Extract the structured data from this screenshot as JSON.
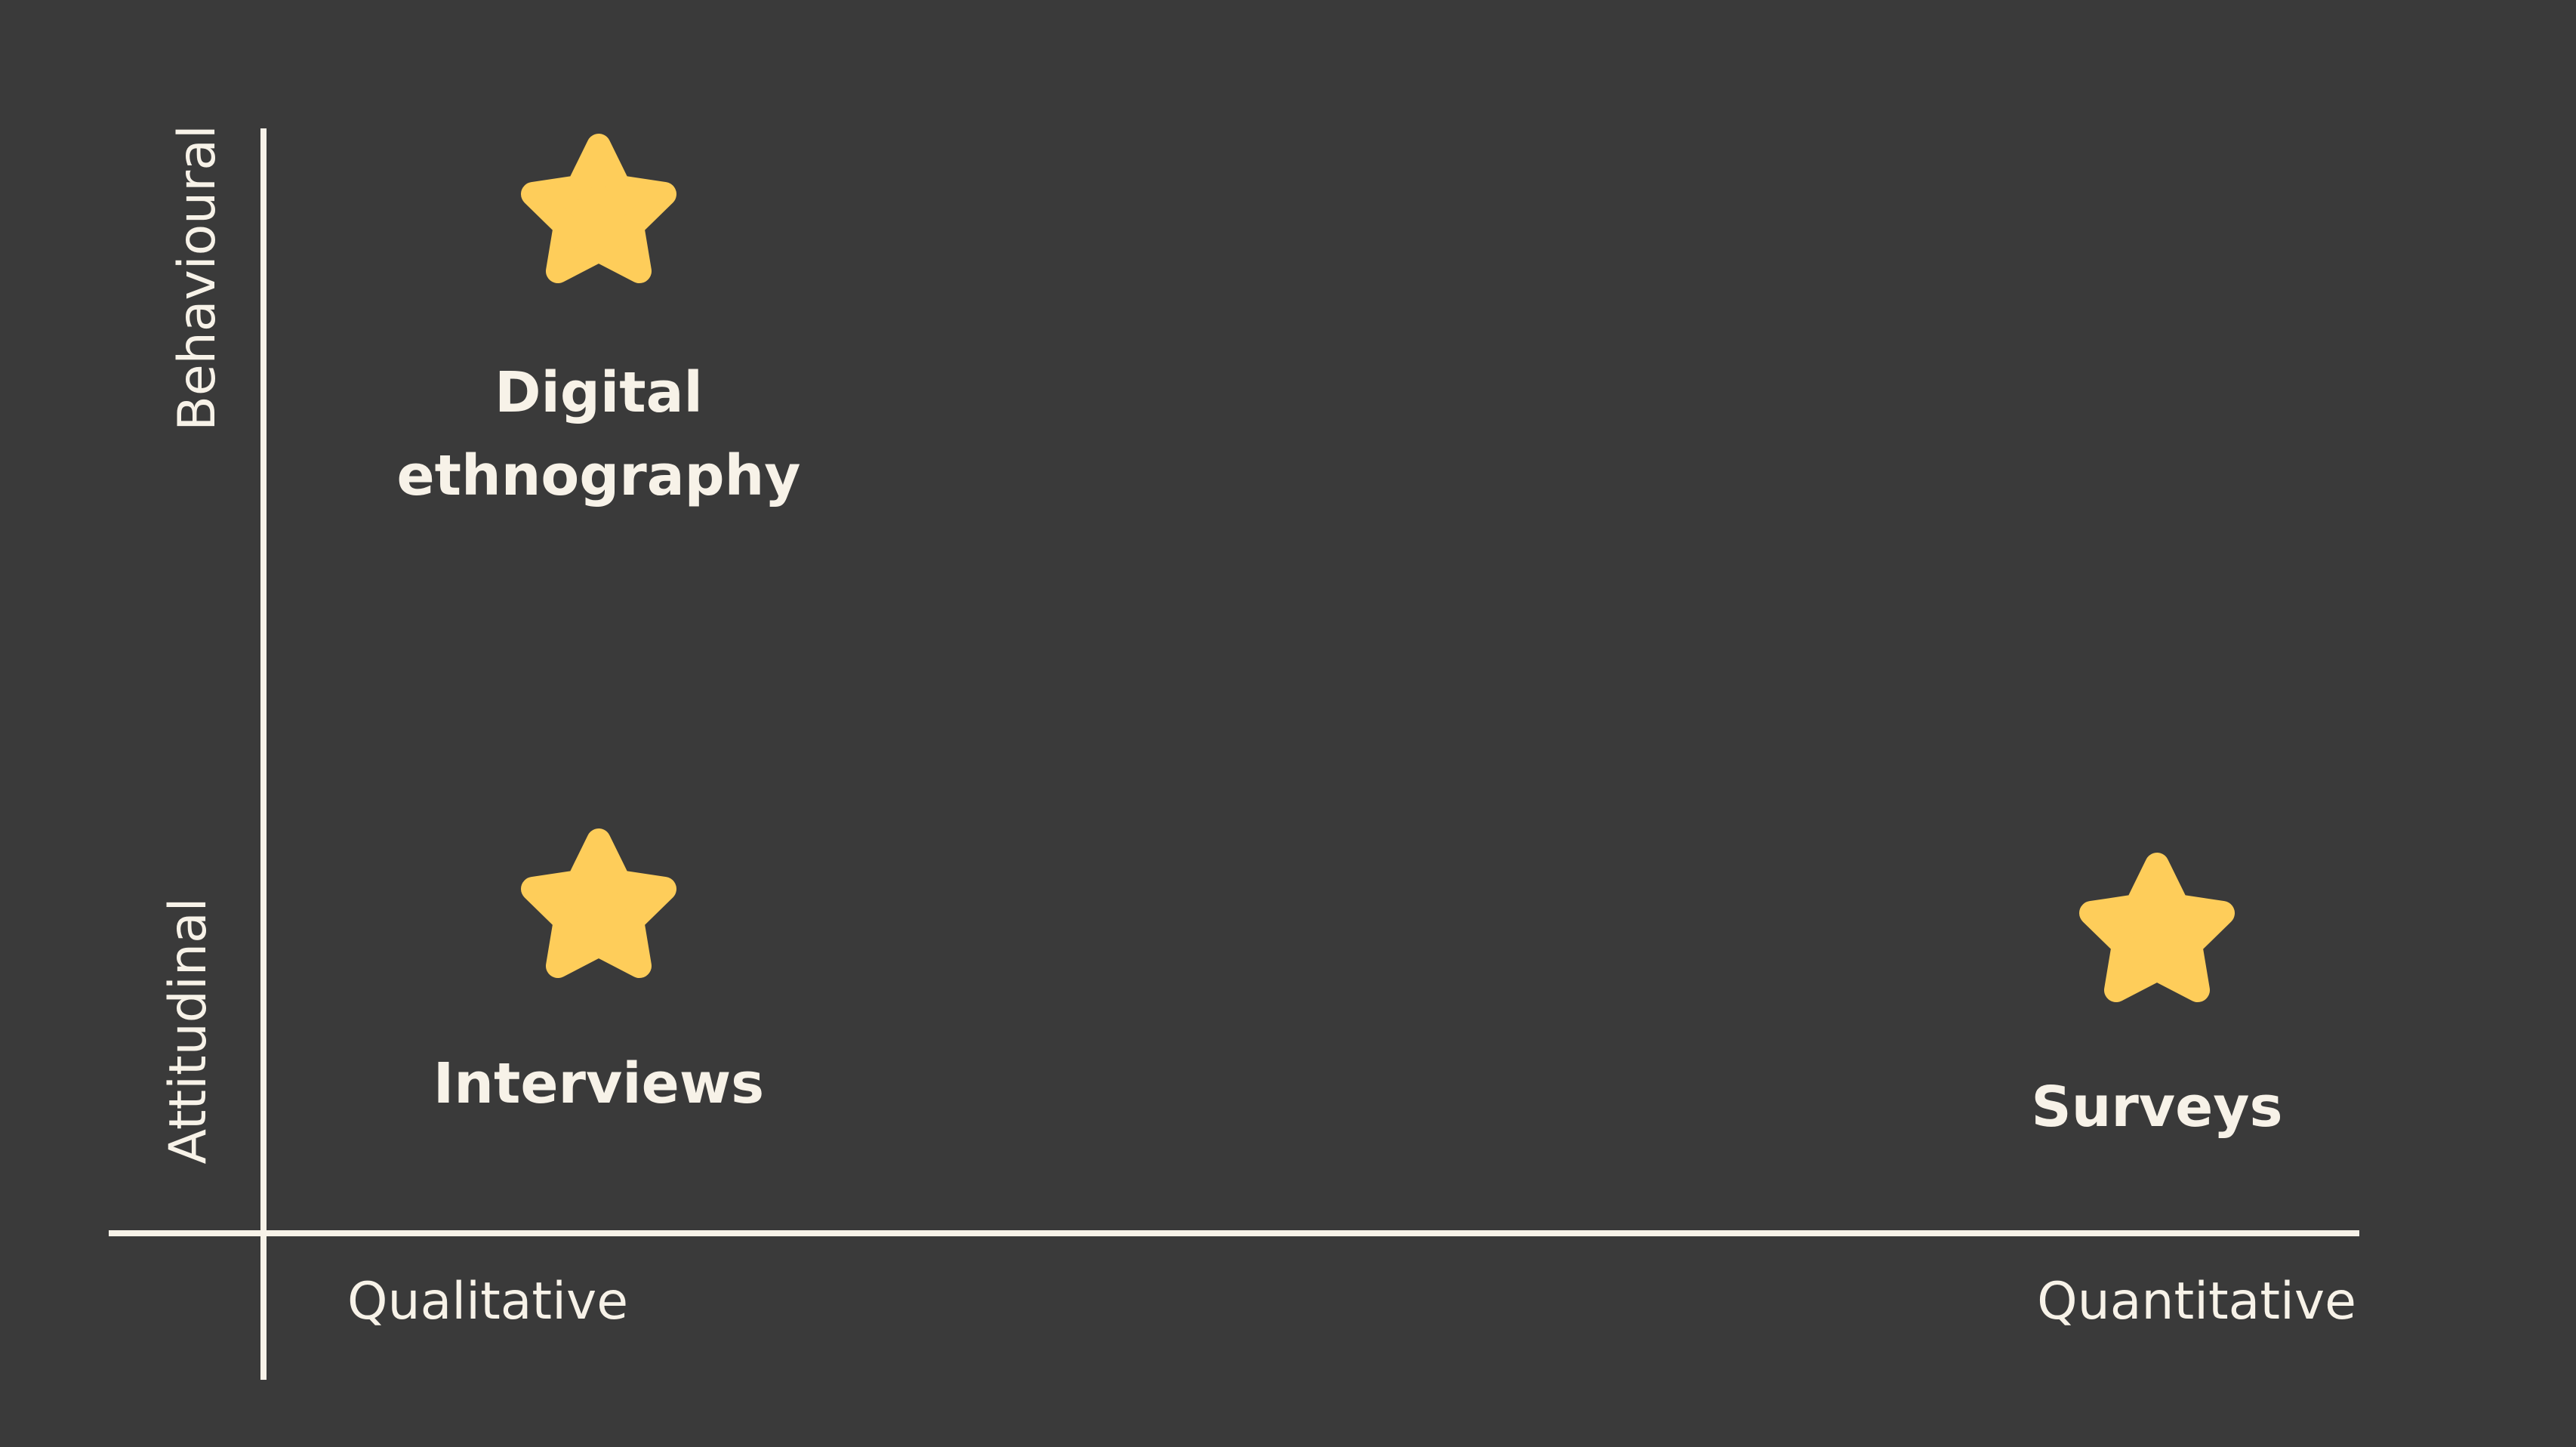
{
  "axes": {
    "y_top_label": "Behavioural",
    "y_bottom_label": "Attitudinal",
    "x_left_label": "Qualitative",
    "x_right_label": "Quantitative"
  },
  "items": [
    {
      "label_line1": "Digital",
      "label_line2": "ethnography",
      "icon": "star-icon"
    },
    {
      "label": "Interviews",
      "icon": "star-icon"
    },
    {
      "label": "Surveys",
      "icon": "star-icon"
    }
  ],
  "colors": {
    "background": "#3a3a3a",
    "line_and_text": "#f7f2e8",
    "star": "#fecd5a"
  }
}
